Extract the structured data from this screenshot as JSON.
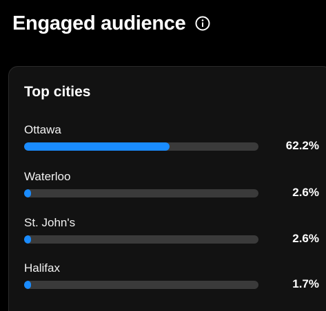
{
  "header": {
    "title": "Engaged audience",
    "info_icon": "info-circle-icon"
  },
  "card": {
    "title": "Top cities",
    "accent_color": "#1a8cff",
    "track_color": "#3a3a3a",
    "cities": [
      {
        "name": "Ottawa",
        "percent_label": "62.2%",
        "percent": 62.2
      },
      {
        "name": "Waterloo",
        "percent_label": "2.6%",
        "percent": 2.6
      },
      {
        "name": "St. John's",
        "percent_label": "2.6%",
        "percent": 2.6
      },
      {
        "name": "Halifax",
        "percent_label": "1.7%",
        "percent": 1.7
      }
    ]
  }
}
